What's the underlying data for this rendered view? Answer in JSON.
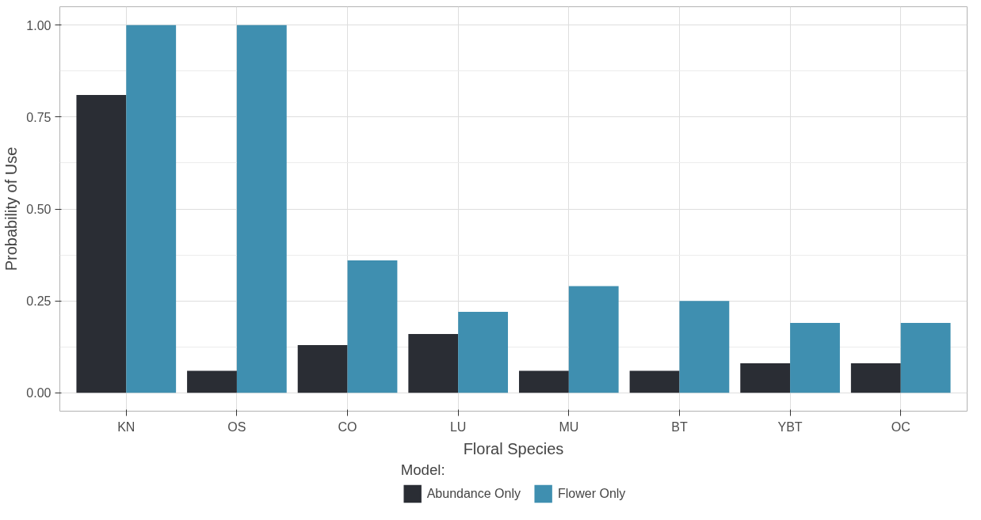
{
  "chart_data": {
    "type": "bar",
    "xlabel": "Floral Species",
    "ylabel": "Probability of Use",
    "legend_title": "Model:",
    "categories": [
      "KN",
      "OS",
      "CO",
      "LU",
      "MU",
      "BT",
      "YBT",
      "OC"
    ],
    "series": [
      {
        "name": "Abundance Only",
        "color": "#2a2d34",
        "values": [
          0.81,
          0.06,
          0.13,
          0.16,
          0.06,
          0.06,
          0.08,
          0.08
        ]
      },
      {
        "name": "Flower Only",
        "color": "#3f8fb0",
        "values": [
          1.0,
          1.0,
          0.36,
          0.22,
          0.29,
          0.25,
          0.19,
          0.19
        ]
      }
    ],
    "ylim": [
      -0.05,
      1.05
    ],
    "yticks": [
      {
        "value": 0,
        "label": "0.00"
      },
      {
        "value": 0.25,
        "label": "0.25"
      },
      {
        "value": 0.5,
        "label": "0.50"
      },
      {
        "value": 0.75,
        "label": "0.75"
      },
      {
        "value": 1,
        "label": "1.00"
      }
    ],
    "grid": true,
    "legend": "bottom"
  }
}
